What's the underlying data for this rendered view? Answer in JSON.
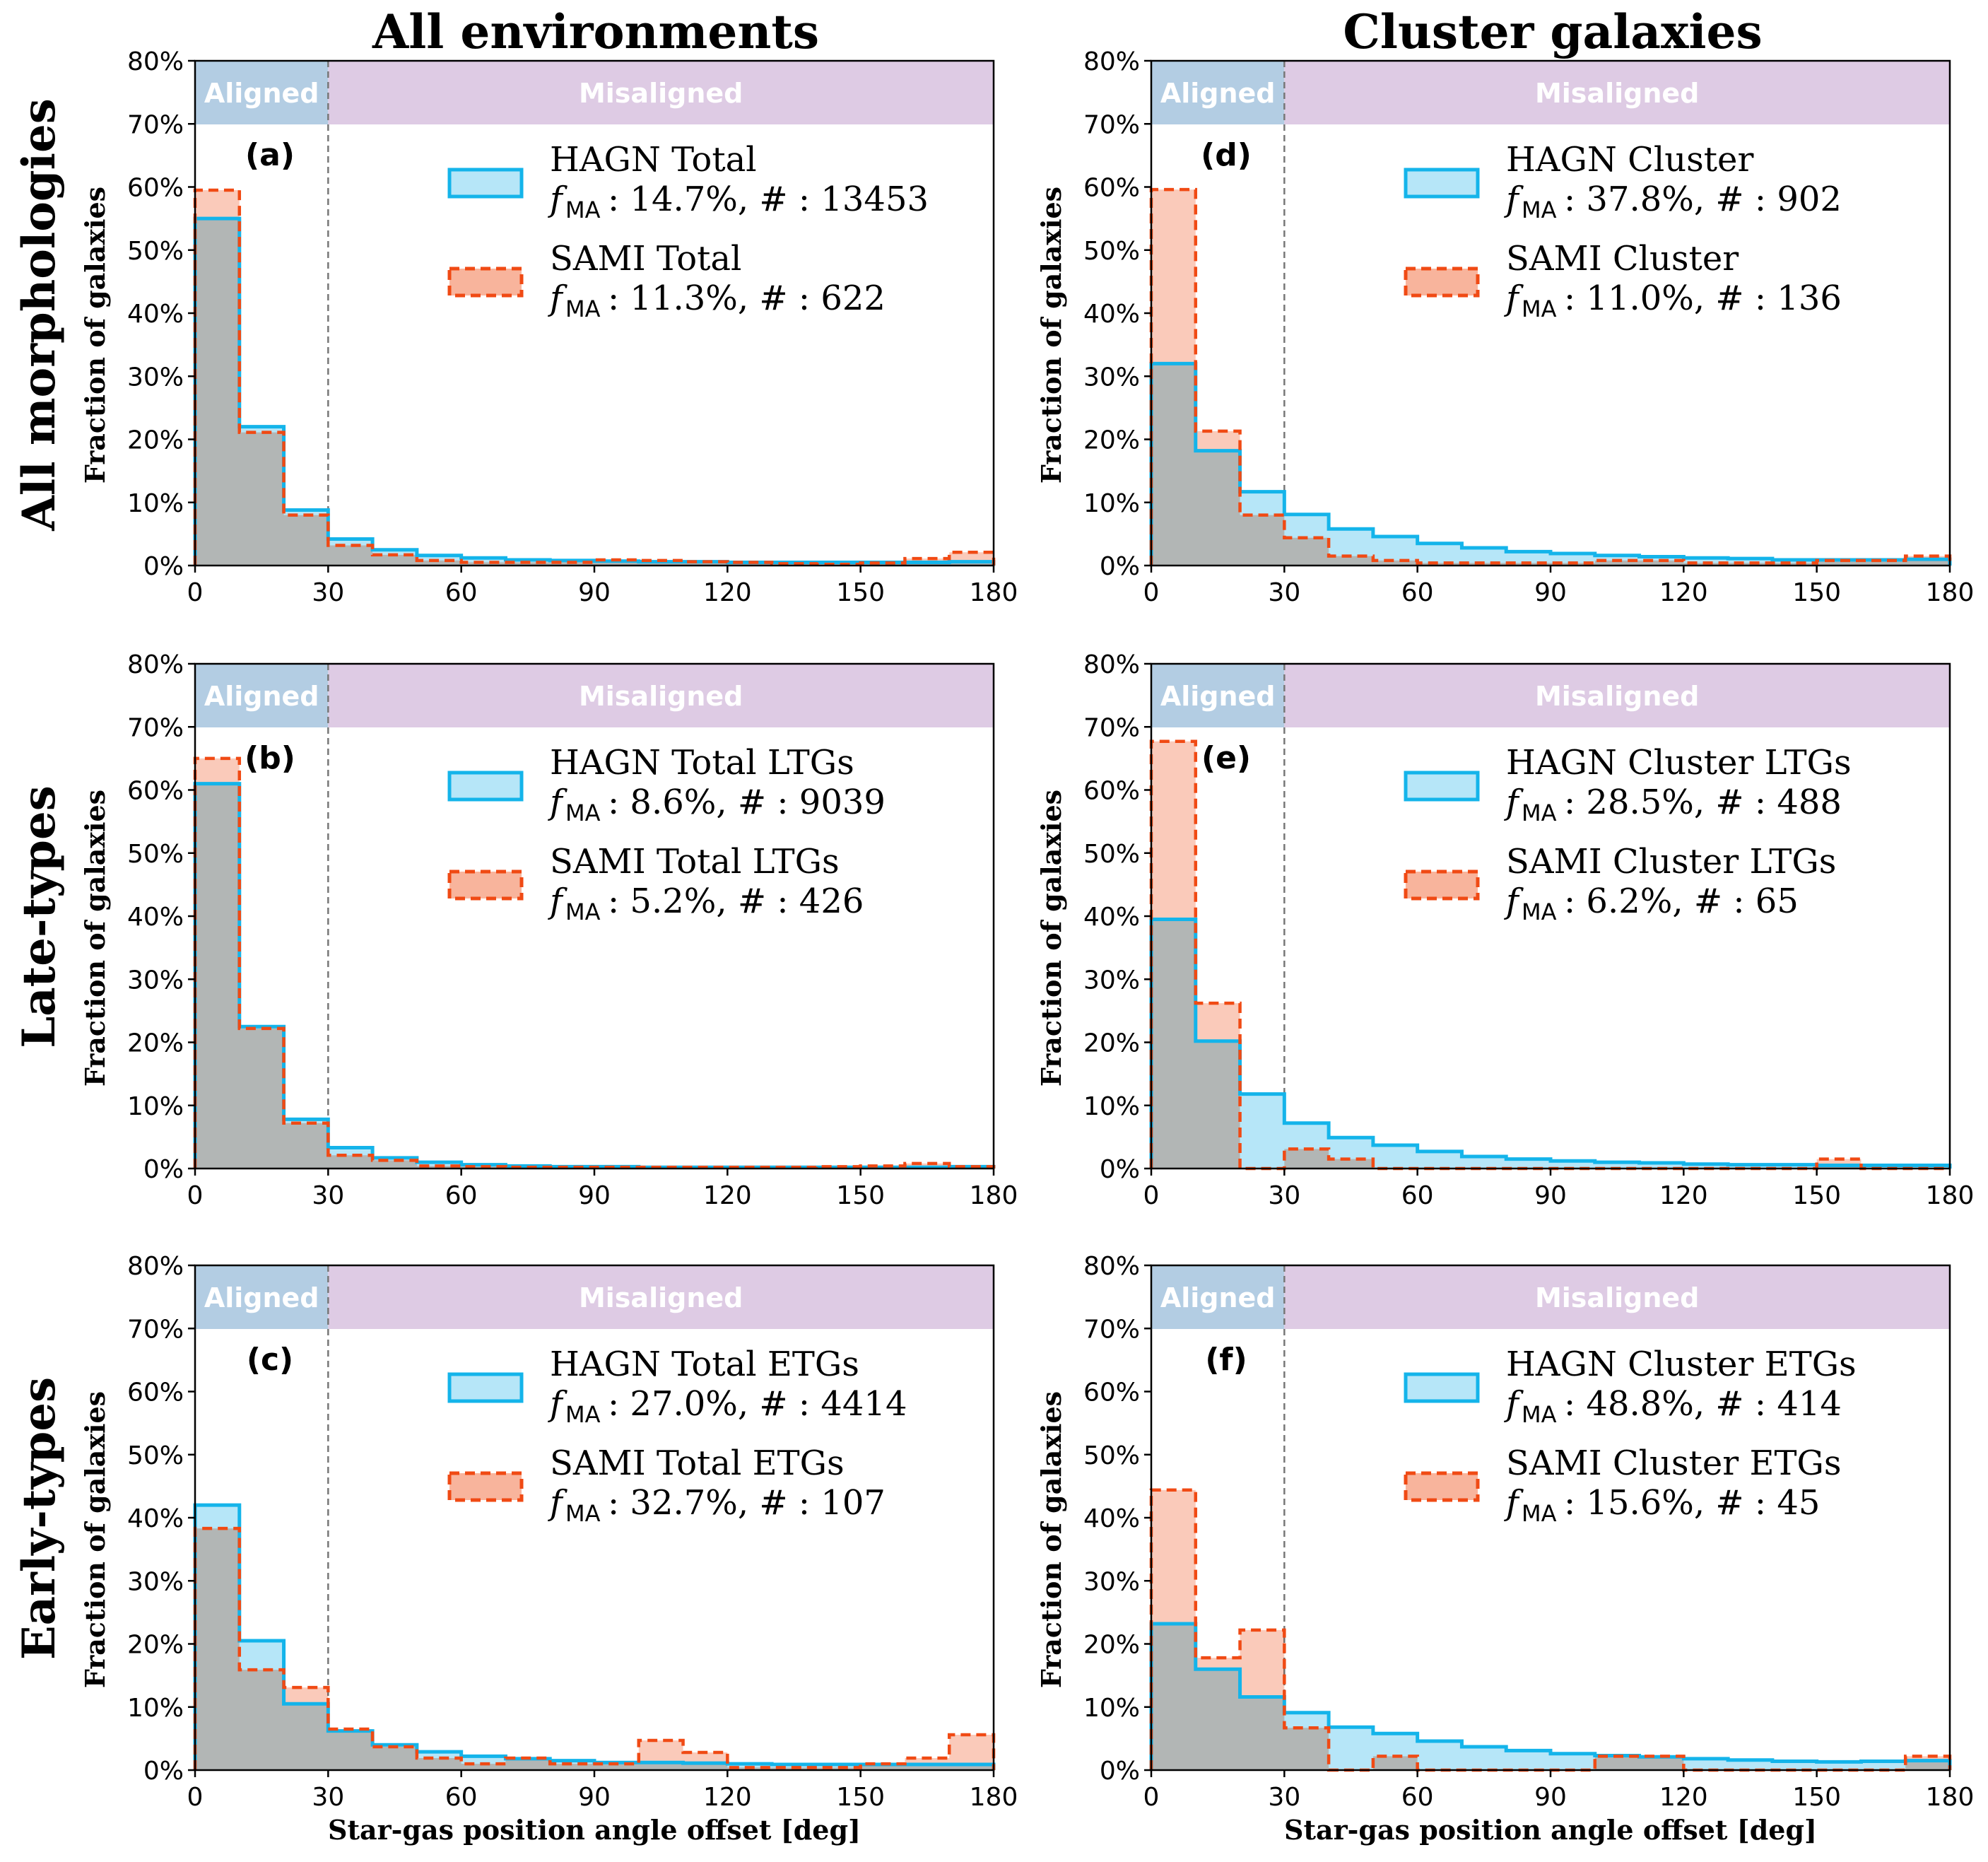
{
  "figure": {
    "column_titles": [
      "All environments",
      "Cluster galaxies"
    ],
    "row_labels": [
      "All morphologies",
      "Late-types",
      "Early-types"
    ],
    "ylabel": "Fraction of galaxies",
    "xlabel": "Star-gas position angle offset [deg]",
    "x_ticks": [
      "0",
      "30",
      "60",
      "90",
      "120",
      "150",
      "180"
    ],
    "y_ticks": [
      "0%",
      "10%",
      "20%",
      "30%",
      "40%",
      "50%",
      "60%",
      "70%",
      "80%"
    ],
    "band_labels": {
      "aligned": "Aligned",
      "misaligned": "Misaligned"
    },
    "colors": {
      "hagn_line": "#14b4ea",
      "hagn_fill": "#b6e6f8",
      "sami_line": "#f04a14",
      "sami_fill": "#f8b49c",
      "aligned_band": "#b3cde3",
      "misaligned_band": "#decbe4"
    }
  },
  "chart_data": [
    {
      "type": "bar",
      "panel": "(a)",
      "bin_edges": [
        0,
        10,
        20,
        30,
        40,
        50,
        60,
        70,
        80,
        90,
        100,
        110,
        120,
        130,
        140,
        150,
        160,
        170,
        180
      ],
      "xlim": [
        0,
        180
      ],
      "ylim": [
        0,
        0.8
      ],
      "aligned_limit": 30,
      "series": [
        {
          "name": "HAGN Total",
          "stats": ": 14.7%, # : 13453",
          "values": [
            0.55,
            0.22,
            0.088,
            0.042,
            0.025,
            0.016,
            0.012,
            0.009,
            0.008,
            0.007,
            0.006,
            0.006,
            0.005,
            0.005,
            0.005,
            0.005,
            0.005,
            0.006
          ]
        },
        {
          "name": "SAMI Total",
          "stats": ": 11.3%, # : 622",
          "values": [
            0.595,
            0.211,
            0.08,
            0.032,
            0.017,
            0.008,
            0.005,
            0.005,
            0.005,
            0.009,
            0.008,
            0.006,
            0.005,
            0.003,
            0.002,
            0.004,
            0.011,
            0.021
          ]
        }
      ]
    },
    {
      "type": "bar",
      "panel": "(b)",
      "bin_edges": [
        0,
        10,
        20,
        30,
        40,
        50,
        60,
        70,
        80,
        90,
        100,
        110,
        120,
        130,
        140,
        150,
        160,
        170,
        180
      ],
      "xlim": [
        0,
        180
      ],
      "ylim": [
        0,
        0.8
      ],
      "aligned_limit": 30,
      "series": [
        {
          "name": "HAGN Total LTGs",
          "stats": ": 8.6%, # : 9039",
          "values": [
            0.61,
            0.225,
            0.078,
            0.033,
            0.017,
            0.01,
            0.006,
            0.004,
            0.003,
            0.003,
            0.002,
            0.002,
            0.002,
            0.002,
            0.002,
            0.002,
            0.002,
            0.003
          ]
        },
        {
          "name": "SAMI Total LTGs",
          "stats": ": 5.2%, # : 426",
          "values": [
            0.65,
            0.222,
            0.072,
            0.021,
            0.013,
            0.004,
            0.003,
            0.002,
            0.002,
            0.002,
            0.002,
            0.002,
            0.002,
            0.002,
            0.003,
            0.004,
            0.008,
            0.003
          ]
        }
      ]
    },
    {
      "type": "bar",
      "panel": "(c)",
      "bin_edges": [
        0,
        10,
        20,
        30,
        40,
        50,
        60,
        70,
        80,
        90,
        100,
        110,
        120,
        130,
        140,
        150,
        160,
        170,
        180
      ],
      "xlim": [
        0,
        180
      ],
      "ylim": [
        0,
        0.8
      ],
      "aligned_limit": 30,
      "series": [
        {
          "name": "HAGN Total ETGs",
          "stats": ": 27.0%, # : 4414",
          "values": [
            0.42,
            0.205,
            0.105,
            0.062,
            0.04,
            0.029,
            0.022,
            0.018,
            0.015,
            0.012,
            0.012,
            0.011,
            0.01,
            0.009,
            0.009,
            0.009,
            0.009,
            0.009
          ]
        },
        {
          "name": "SAMI Total ETGs",
          "stats": ": 32.7%, # : 107",
          "values": [
            0.383,
            0.159,
            0.131,
            0.065,
            0.037,
            0.019,
            0.01,
            0.019,
            0.01,
            0.01,
            0.047,
            0.028,
            0.004,
            0.004,
            0.004,
            0.01,
            0.019,
            0.056
          ]
        }
      ]
    },
    {
      "type": "bar",
      "panel": "(d)",
      "bin_edges": [
        0,
        10,
        20,
        30,
        40,
        50,
        60,
        70,
        80,
        90,
        100,
        110,
        120,
        130,
        140,
        150,
        160,
        170,
        180
      ],
      "xlim": [
        0,
        180
      ],
      "ylim": [
        0,
        0.8
      ],
      "aligned_limit": 30,
      "series": [
        {
          "name": "HAGN Cluster",
          "stats": ": 37.8%, # : 902",
          "values": [
            0.32,
            0.182,
            0.117,
            0.081,
            0.058,
            0.046,
            0.035,
            0.028,
            0.022,
            0.019,
            0.016,
            0.014,
            0.012,
            0.011,
            0.009,
            0.009,
            0.009,
            0.01
          ]
        },
        {
          "name": "SAMI Cluster",
          "stats": ": 11.0%, # : 136",
          "values": [
            0.596,
            0.213,
            0.08,
            0.044,
            0.015,
            0.008,
            0.004,
            0.004,
            0.004,
            0.004,
            0.008,
            0.008,
            0.004,
            0.004,
            0.004,
            0.008,
            0.008,
            0.015
          ]
        }
      ]
    },
    {
      "type": "bar",
      "panel": "(e)",
      "bin_edges": [
        0,
        10,
        20,
        30,
        40,
        50,
        60,
        70,
        80,
        90,
        100,
        110,
        120,
        130,
        140,
        150,
        160,
        170,
        180
      ],
      "xlim": [
        0,
        180
      ],
      "ylim": [
        0,
        0.8
      ],
      "aligned_limit": 30,
      "series": [
        {
          "name": "HAGN Cluster LTGs",
          "stats": ": 28.5%, # : 488",
          "values": [
            0.395,
            0.202,
            0.118,
            0.072,
            0.049,
            0.037,
            0.027,
            0.019,
            0.015,
            0.012,
            0.01,
            0.009,
            0.007,
            0.006,
            0.006,
            0.005,
            0.005,
            0.005
          ]
        },
        {
          "name": "SAMI Cluster LTGs",
          "stats": ": 6.2%, # : 65",
          "values": [
            0.677,
            0.262,
            0.0,
            0.031,
            0.015,
            0.0,
            0.0,
            0.0,
            0.0,
            0.0,
            0.0,
            0.0,
            0.0,
            0.0,
            0.0,
            0.015,
            0.0,
            0.0
          ]
        }
      ]
    },
    {
      "type": "bar",
      "panel": "(f)",
      "bin_edges": [
        0,
        10,
        20,
        30,
        40,
        50,
        60,
        70,
        80,
        90,
        100,
        110,
        120,
        130,
        140,
        150,
        160,
        170,
        180
      ],
      "xlim": [
        0,
        180
      ],
      "ylim": [
        0,
        0.8
      ],
      "aligned_limit": 30,
      "series": [
        {
          "name": "HAGN Cluster ETGs",
          "stats": ": 48.8%, # : 414",
          "values": [
            0.232,
            0.16,
            0.116,
            0.091,
            0.068,
            0.058,
            0.046,
            0.037,
            0.031,
            0.026,
            0.023,
            0.021,
            0.018,
            0.016,
            0.014,
            0.013,
            0.014,
            0.015
          ]
        },
        {
          "name": "SAMI Cluster ETGs",
          "stats": ": 15.6%, # : 45",
          "values": [
            0.444,
            0.178,
            0.222,
            0.067,
            0.0,
            0.022,
            0.0,
            0.0,
            0.0,
            0.0,
            0.022,
            0.022,
            0.0,
            0.0,
            0.0,
            0.0,
            0.0,
            0.022
          ]
        }
      ]
    }
  ]
}
